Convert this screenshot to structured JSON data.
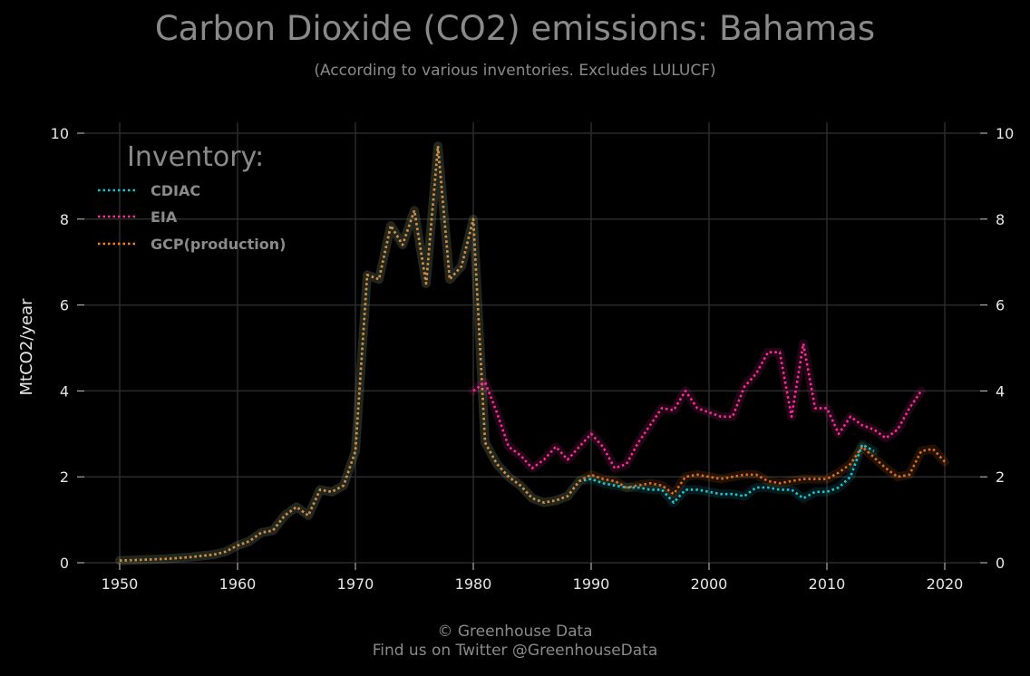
{
  "header": {
    "title": "Carbon Dioxide (CO2) emissions: Bahamas",
    "subtitle": "(According to various inventories. Excludes LULUCF)"
  },
  "footer": {
    "line1": "© Greenhouse Data",
    "line2": "Find us on Twitter @GreenhouseData"
  },
  "chart_data": {
    "type": "line",
    "title": "Carbon Dioxide (CO2) emissions: Bahamas",
    "subtitle": "(According to various inventories. Excludes LULUCF)",
    "ylabel": "MtCO2/year",
    "xlim": [
      1947,
      2023
    ],
    "ylim": [
      0,
      10
    ],
    "xticks": [
      1950,
      1960,
      1970,
      1980,
      1990,
      2000,
      2010,
      2020
    ],
    "yticks": [
      0,
      2,
      4,
      6,
      8,
      10
    ],
    "grid": true,
    "legend": {
      "title": "Inventory:",
      "placement": "top-left"
    },
    "series": [
      {
        "name": "CDIAC",
        "color": "#17c9d6",
        "x": [
          1950,
          1951,
          1952,
          1953,
          1954,
          1955,
          1956,
          1957,
          1958,
          1959,
          1960,
          1961,
          1962,
          1963,
          1964,
          1965,
          1966,
          1967,
          1968,
          1969,
          1970,
          1971,
          1972,
          1973,
          1974,
          1975,
          1976,
          1977,
          1978,
          1979,
          1980,
          1981,
          1982,
          1983,
          1984,
          1985,
          1986,
          1987,
          1988,
          1989,
          1990,
          1991,
          1992,
          1993,
          1994,
          1995,
          1996,
          1997,
          1998,
          1999,
          2000,
          2001,
          2002,
          2003,
          2004,
          2005,
          2006,
          2007,
          2008,
          2009,
          2010,
          2011,
          2012,
          2013,
          2014
        ],
        "values": [
          0.05,
          0.06,
          0.07,
          0.08,
          0.09,
          0.11,
          0.13,
          0.16,
          0.19,
          0.26,
          0.4,
          0.5,
          0.7,
          0.75,
          1.1,
          1.3,
          1.1,
          1.7,
          1.65,
          1.8,
          2.6,
          6.7,
          6.6,
          7.85,
          7.4,
          8.2,
          6.5,
          9.7,
          6.6,
          6.9,
          8.0,
          2.8,
          2.3,
          2.0,
          1.8,
          1.5,
          1.4,
          1.45,
          1.55,
          1.9,
          1.95,
          1.85,
          1.8,
          1.75,
          1.75,
          1.7,
          1.7,
          1.4,
          1.7,
          1.7,
          1.65,
          1.6,
          1.6,
          1.55,
          1.75,
          1.75,
          1.7,
          1.7,
          1.5,
          1.65,
          1.65,
          1.75,
          2.0,
          2.75,
          2.6
        ]
      },
      {
        "name": "EIA",
        "color": "#ff2a9d",
        "x": [
          1980,
          1981,
          1982,
          1983,
          1984,
          1985,
          1986,
          1987,
          1988,
          1989,
          1990,
          1991,
          1992,
          1993,
          1994,
          1995,
          1996,
          1997,
          1998,
          1999,
          2000,
          2001,
          2002,
          2003,
          2004,
          2005,
          2006,
          2007,
          2008,
          2009,
          2010,
          2011,
          2012,
          2013,
          2014,
          2015,
          2016,
          2017,
          2018
        ],
        "values": [
          4.0,
          4.2,
          3.5,
          2.7,
          2.5,
          2.2,
          2.4,
          2.7,
          2.4,
          2.7,
          3.0,
          2.7,
          2.2,
          2.3,
          2.8,
          3.2,
          3.6,
          3.55,
          4.0,
          3.6,
          3.5,
          3.4,
          3.4,
          4.1,
          4.4,
          4.9,
          4.9,
          3.4,
          5.1,
          3.6,
          3.6,
          3.0,
          3.4,
          3.2,
          3.1,
          2.9,
          3.1,
          3.6,
          4.0
        ]
      },
      {
        "name": "GCP(production)",
        "color": "#ff7f1e",
        "x": [
          1950,
          1951,
          1952,
          1953,
          1954,
          1955,
          1956,
          1957,
          1958,
          1959,
          1960,
          1961,
          1962,
          1963,
          1964,
          1965,
          1966,
          1967,
          1968,
          1969,
          1970,
          1971,
          1972,
          1973,
          1974,
          1975,
          1976,
          1977,
          1978,
          1979,
          1980,
          1981,
          1982,
          1983,
          1984,
          1985,
          1986,
          1987,
          1988,
          1989,
          1990,
          1991,
          1992,
          1993,
          1994,
          1995,
          1996,
          1997,
          1998,
          1999,
          2000,
          2001,
          2002,
          2003,
          2004,
          2005,
          2006,
          2007,
          2008,
          2009,
          2010,
          2011,
          2012,
          2013,
          2014,
          2015,
          2016,
          2017,
          2018,
          2019,
          2020
        ],
        "values": [
          0.05,
          0.06,
          0.07,
          0.08,
          0.09,
          0.11,
          0.13,
          0.16,
          0.19,
          0.26,
          0.4,
          0.5,
          0.7,
          0.75,
          1.1,
          1.3,
          1.1,
          1.7,
          1.65,
          1.8,
          2.6,
          6.7,
          6.6,
          7.85,
          7.4,
          8.2,
          6.5,
          9.7,
          6.6,
          6.9,
          8.0,
          2.8,
          2.3,
          2.0,
          1.8,
          1.5,
          1.4,
          1.45,
          1.55,
          1.9,
          2.05,
          1.95,
          1.9,
          1.75,
          1.8,
          1.85,
          1.8,
          1.6,
          2.0,
          2.05,
          2.0,
          1.95,
          2.0,
          2.05,
          2.05,
          1.9,
          1.85,
          1.9,
          1.95,
          1.95,
          1.95,
          2.1,
          2.3,
          2.7,
          2.45,
          2.2,
          2.0,
          2.05,
          2.6,
          2.65,
          2.35
        ]
      }
    ]
  }
}
